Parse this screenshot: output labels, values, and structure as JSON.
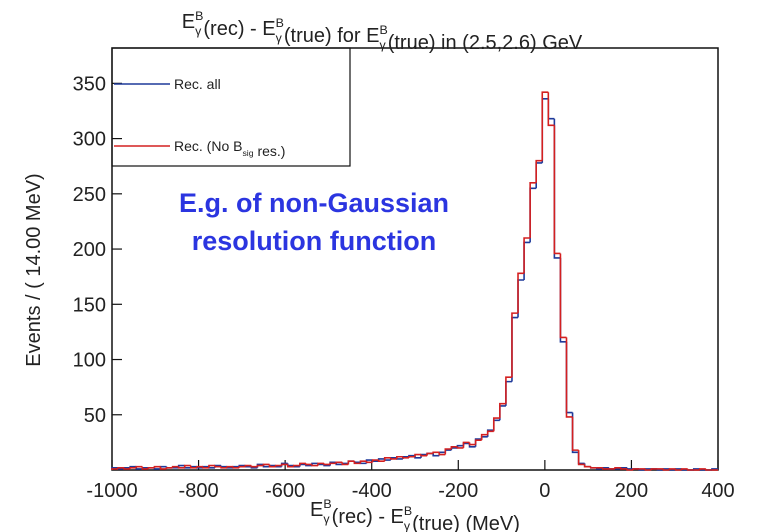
{
  "chart_data": {
    "type": "histogram",
    "title": [
      {
        "text": "E"
      },
      {
        "sup": "B",
        "sub": "γ"
      },
      {
        "text": "(rec) - E"
      },
      {
        "sup": "B",
        "sub": "γ"
      },
      {
        "text": "(true) for E"
      },
      {
        "sup": "B",
        "sub": "γ"
      },
      {
        "text": "(true) in (2.5,2.6) GeV"
      }
    ],
    "x_label": [
      {
        "text": "E"
      },
      {
        "sup": "B",
        "sub": "γ"
      },
      {
        "text": "(rec) - E"
      },
      {
        "sup": "B",
        "sub": "γ"
      },
      {
        "text": "(true) (MeV)"
      }
    ],
    "y_label": "Events / ( 14.00 MeV)",
    "annotation": [
      "E.g.  of non-Gaussian",
      "resolution function"
    ],
    "annotation_color": "#2b35e0",
    "bins": [
      -1000,
      -986,
      -972,
      -958,
      -944,
      -930,
      -916,
      -902,
      -888,
      -874,
      -860,
      -846,
      -832,
      -818,
      -804,
      -790,
      -776,
      -762,
      -748,
      -734,
      -720,
      -706,
      -692,
      -678,
      -664,
      -650,
      -636,
      -622,
      -608,
      -594,
      -580,
      -566,
      -552,
      -538,
      -524,
      -510,
      -496,
      -482,
      -468,
      -454,
      -440,
      -426,
      -412,
      -398,
      -384,
      -370,
      -356,
      -342,
      -328,
      -314,
      -300,
      -286,
      -272,
      -258,
      -244,
      -230,
      -216,
      -202,
      -188,
      -174,
      -160,
      -146,
      -132,
      -118,
      -104,
      -90,
      -76,
      -62,
      -48,
      -34,
      -20,
      -6,
      8,
      22,
      36,
      50,
      64,
      78,
      92,
      106,
      120,
      134,
      148,
      162,
      176,
      190,
      204,
      218,
      232,
      246,
      260,
      274,
      288,
      302,
      316,
      330,
      344,
      358,
      372,
      386,
      400
    ],
    "series": [
      {
        "name": [
          {
            "text": "Rec. all"
          }
        ],
        "color": "#1f3a9a",
        "values": [
          2,
          1,
          2,
          3,
          1,
          2,
          2,
          1,
          3,
          2,
          2,
          4,
          2,
          3,
          2,
          3,
          2,
          4,
          3,
          2,
          3,
          4,
          3,
          2,
          5,
          3,
          4,
          3,
          6,
          4,
          3,
          5,
          4,
          6,
          5,
          4,
          7,
          5,
          6,
          8,
          7,
          6,
          9,
          8,
          10,
          9,
          11,
          10,
          12,
          13,
          11,
          14,
          15,
          13,
          16,
          18,
          20,
          22,
          24,
          21,
          28,
          30,
          36,
          45,
          58,
          80,
          138,
          172,
          206,
          255,
          278,
          336,
          318,
          192,
          116,
          52,
          16,
          6,
          3,
          2,
          1,
          2,
          1,
          1,
          2,
          1,
          1,
          0,
          1,
          1,
          0,
          1,
          0,
          1,
          0,
          0,
          1,
          0,
          0,
          1
        ]
      },
      {
        "name": [
          {
            "text": "Rec. (No B"
          },
          {
            "sub": "sig"
          },
          {
            "text": " res.)"
          }
        ],
        "color": "#d42020",
        "values": [
          1,
          2,
          1,
          2,
          3,
          1,
          2,
          3,
          1,
          2,
          3,
          2,
          4,
          2,
          3,
          2,
          4,
          3,
          2,
          3,
          2,
          3,
          4,
          3,
          4,
          5,
          3,
          4,
          5,
          3,
          4,
          6,
          5,
          4,
          6,
          5,
          6,
          7,
          5,
          8,
          6,
          8,
          7,
          9,
          8,
          11,
          10,
          12,
          11,
          12,
          14,
          13,
          15,
          16,
          14,
          19,
          21,
          20,
          25,
          23,
          27,
          32,
          35,
          47,
          60,
          84,
          142,
          178,
          210,
          260,
          280,
          342,
          312,
          196,
          120,
          48,
          18,
          5,
          3,
          2,
          2,
          1,
          1,
          2,
          1,
          0,
          1,
          1,
          0,
          1,
          1,
          0,
          1,
          0,
          1,
          0,
          0,
          1,
          0,
          0
        ]
      }
    ],
    "xlim": [
      -1000,
      400
    ],
    "ylim": [
      0,
      382
    ],
    "xticks": [
      -1000,
      -800,
      -600,
      -400,
      -200,
      0,
      200,
      400
    ],
    "yticks": [
      50,
      100,
      150,
      200,
      250,
      300,
      350
    ],
    "legend": "top-left"
  }
}
